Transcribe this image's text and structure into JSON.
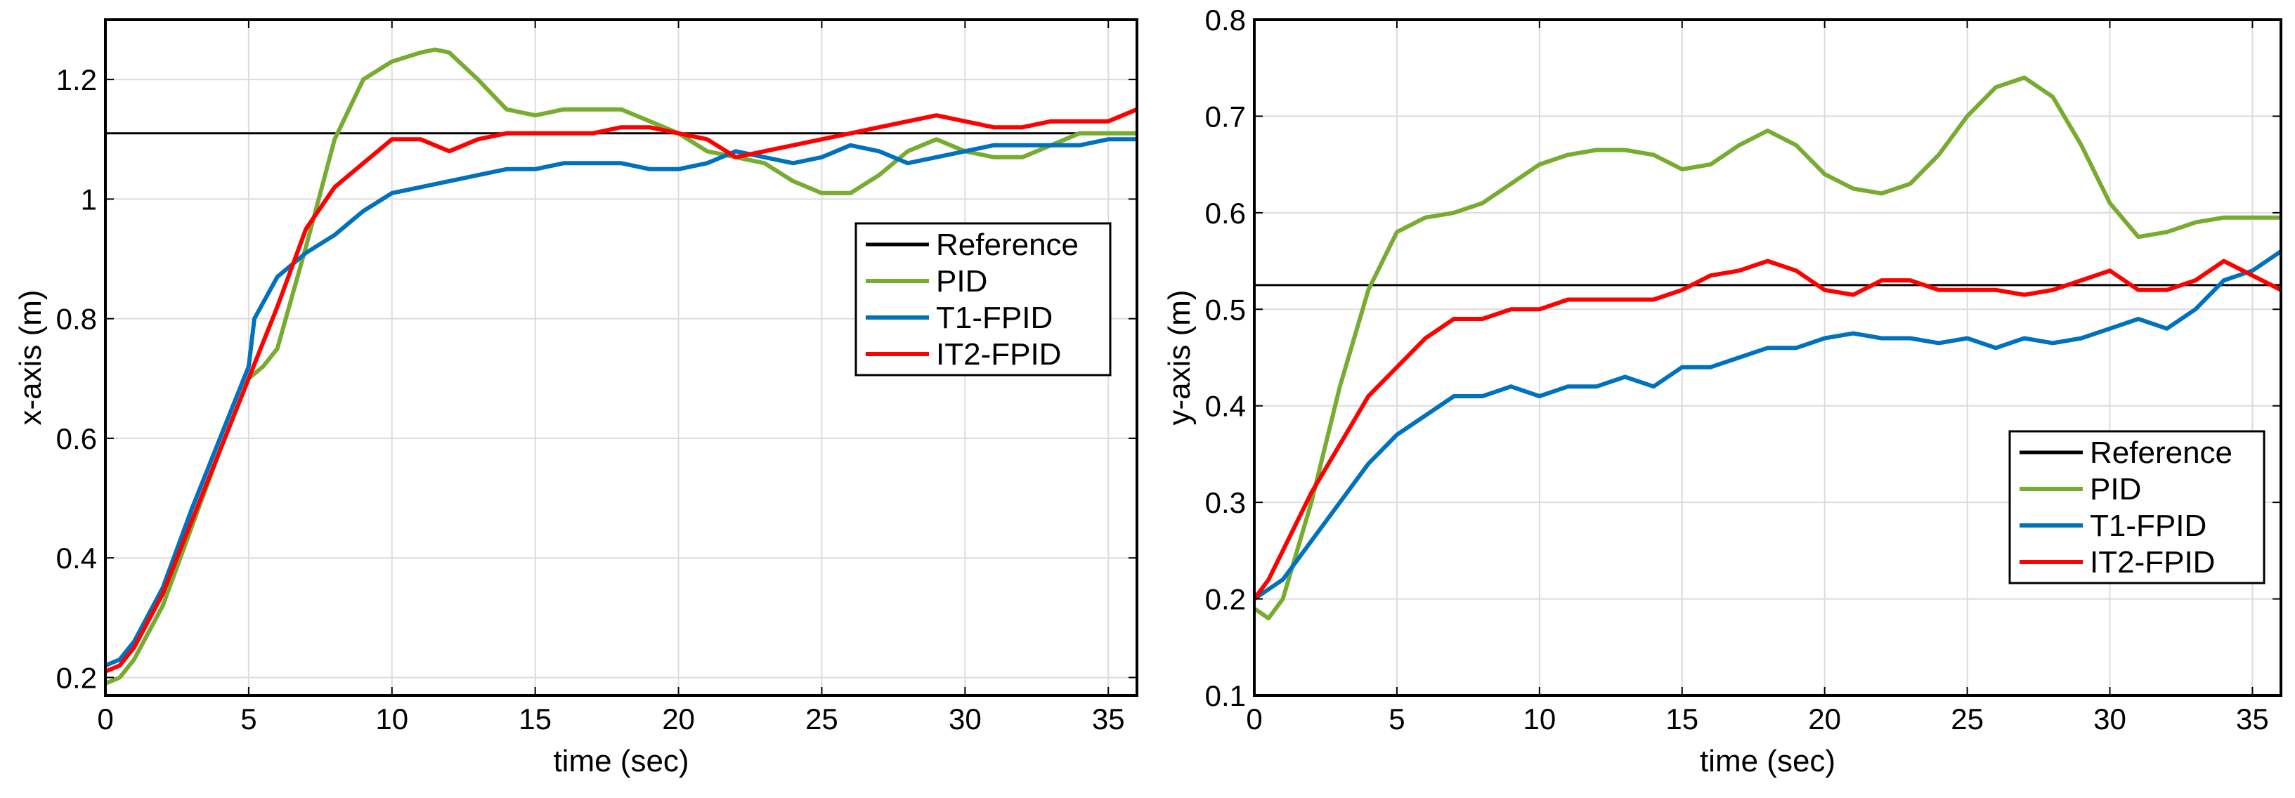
{
  "chart_data": [
    {
      "type": "line",
      "xlabel": "time (sec)",
      "ylabel": "x-axis (m)",
      "xlim": [
        0,
        36
      ],
      "ylim": [
        0.17,
        1.3
      ],
      "xticks": [
        0,
        5,
        10,
        15,
        20,
        25,
        30,
        35
      ],
      "xtick_labels": [
        "0",
        "5",
        "10",
        "15",
        "20",
        "25",
        "30",
        "35"
      ],
      "yticks": [
        0.2,
        0.4,
        0.6,
        0.8,
        1.0,
        1.2
      ],
      "ytick_labels": [
        "0.2",
        "0.4",
        "0.6",
        "0.8",
        "1",
        "1.2"
      ],
      "grid": true,
      "legend_position": "center-right",
      "series": [
        {
          "name": "Reference",
          "color": "#000000",
          "x": [
            0,
            36
          ],
          "y": [
            1.11,
            1.11
          ]
        },
        {
          "name": "PID",
          "color": "#77ac30",
          "x": [
            0,
            0.5,
            1,
            2,
            3,
            4,
            5,
            5.5,
            6,
            7,
            8,
            9,
            10,
            11,
            11.5,
            12,
            13,
            14,
            15,
            16,
            17,
            18,
            19,
            20,
            21,
            22,
            23,
            24,
            25,
            26,
            27,
            28,
            29,
            30,
            31,
            32,
            33,
            34,
            35,
            36
          ],
          "y": [
            0.19,
            0.2,
            0.23,
            0.32,
            0.45,
            0.58,
            0.7,
            0.72,
            0.75,
            0.92,
            1.1,
            1.2,
            1.23,
            1.245,
            1.25,
            1.245,
            1.2,
            1.15,
            1.14,
            1.15,
            1.15,
            1.15,
            1.13,
            1.11,
            1.08,
            1.07,
            1.06,
            1.03,
            1.01,
            1.01,
            1.04,
            1.08,
            1.1,
            1.08,
            1.07,
            1.07,
            1.09,
            1.11,
            1.11,
            1.11
          ]
        },
        {
          "name": "T1-FPID",
          "color": "#0072bd",
          "x": [
            0,
            0.5,
            1,
            2,
            3,
            4,
            5,
            5.2,
            6,
            7,
            8,
            9,
            10,
            11,
            12,
            13,
            14,
            15,
            16,
            17,
            18,
            19,
            20,
            21,
            22,
            23,
            24,
            25,
            26,
            27,
            28,
            29,
            30,
            31,
            32,
            33,
            34,
            35,
            36
          ],
          "y": [
            0.22,
            0.23,
            0.26,
            0.35,
            0.48,
            0.6,
            0.72,
            0.8,
            0.87,
            0.91,
            0.94,
            0.98,
            1.01,
            1.02,
            1.03,
            1.04,
            1.05,
            1.05,
            1.06,
            1.06,
            1.06,
            1.05,
            1.05,
            1.06,
            1.08,
            1.07,
            1.06,
            1.07,
            1.09,
            1.08,
            1.06,
            1.07,
            1.08,
            1.09,
            1.09,
            1.09,
            1.09,
            1.1,
            1.1
          ]
        },
        {
          "name": "IT2-FPID",
          "color": "#ff0000",
          "x": [
            0,
            0.5,
            1,
            2,
            3,
            4,
            5,
            6,
            7,
            8,
            9,
            10,
            11,
            12,
            13,
            14,
            15,
            16,
            17,
            18,
            19,
            20,
            21,
            22,
            23,
            24,
            25,
            26,
            27,
            28,
            29,
            30,
            31,
            32,
            33,
            34,
            35,
            36
          ],
          "y": [
            0.21,
            0.22,
            0.25,
            0.34,
            0.46,
            0.58,
            0.7,
            0.82,
            0.95,
            1.02,
            1.06,
            1.1,
            1.1,
            1.08,
            1.1,
            1.11,
            1.11,
            1.11,
            1.11,
            1.12,
            1.12,
            1.11,
            1.1,
            1.07,
            1.08,
            1.09,
            1.1,
            1.11,
            1.12,
            1.13,
            1.14,
            1.13,
            1.12,
            1.12,
            1.13,
            1.13,
            1.13,
            1.15
          ]
        }
      ],
      "legend": [
        "Reference",
        "PID",
        "T1-FPID",
        "IT2-FPID"
      ]
    },
    {
      "type": "line",
      "xlabel": "time (sec)",
      "ylabel": "y-axis (m)",
      "xlim": [
        0,
        36
      ],
      "ylim": [
        0.1,
        0.8
      ],
      "xticks": [
        0,
        5,
        10,
        15,
        20,
        25,
        30,
        35
      ],
      "xtick_labels": [
        "0",
        "5",
        "10",
        "15",
        "20",
        "25",
        "30",
        "35"
      ],
      "yticks": [
        0.1,
        0.2,
        0.3,
        0.4,
        0.5,
        0.6,
        0.7,
        0.8
      ],
      "ytick_labels": [
        "0.1",
        "0.2",
        "0.3",
        "0.4",
        "0.5",
        "0.6",
        "0.7",
        "0.8"
      ],
      "grid": true,
      "legend_position": "bottom-right",
      "series": [
        {
          "name": "Reference",
          "color": "#000000",
          "x": [
            0,
            36
          ],
          "y": [
            0.525,
            0.525
          ]
        },
        {
          "name": "PID",
          "color": "#77ac30",
          "x": [
            0,
            0.5,
            1,
            2,
            3,
            4,
            5,
            6,
            7,
            8,
            9,
            10,
            11,
            12,
            13,
            14,
            15,
            16,
            17,
            18,
            19,
            20,
            21,
            22,
            23,
            24,
            25,
            26,
            27,
            28,
            29,
            30,
            31,
            32,
            33,
            34,
            35,
            36
          ],
          "y": [
            0.19,
            0.18,
            0.2,
            0.3,
            0.42,
            0.52,
            0.58,
            0.595,
            0.6,
            0.61,
            0.63,
            0.65,
            0.66,
            0.665,
            0.665,
            0.66,
            0.645,
            0.65,
            0.67,
            0.685,
            0.67,
            0.64,
            0.625,
            0.62,
            0.63,
            0.66,
            0.7,
            0.73,
            0.74,
            0.72,
            0.67,
            0.61,
            0.575,
            0.58,
            0.59,
            0.595,
            0.595,
            0.595
          ]
        },
        {
          "name": "T1-FPID",
          "color": "#0072bd",
          "x": [
            0,
            0.5,
            1,
            2,
            3,
            4,
            5,
            6,
            7,
            8,
            9,
            10,
            11,
            12,
            13,
            14,
            15,
            16,
            17,
            18,
            19,
            20,
            21,
            22,
            23,
            24,
            25,
            26,
            27,
            28,
            29,
            30,
            31,
            32,
            33,
            34,
            35,
            36
          ],
          "y": [
            0.2,
            0.21,
            0.22,
            0.26,
            0.3,
            0.34,
            0.37,
            0.39,
            0.41,
            0.41,
            0.42,
            0.41,
            0.42,
            0.42,
            0.43,
            0.42,
            0.44,
            0.44,
            0.45,
            0.46,
            0.46,
            0.47,
            0.475,
            0.47,
            0.47,
            0.465,
            0.47,
            0.46,
            0.47,
            0.465,
            0.47,
            0.48,
            0.49,
            0.48,
            0.5,
            0.53,
            0.54,
            0.56
          ]
        },
        {
          "name": "IT2-FPID",
          "color": "#ff0000",
          "x": [
            0,
            0.5,
            1,
            2,
            3,
            4,
            5,
            6,
            7,
            8,
            9,
            10,
            11,
            12,
            13,
            14,
            15,
            16,
            17,
            18,
            19,
            20,
            21,
            22,
            23,
            24,
            25,
            26,
            27,
            28,
            29,
            30,
            31,
            32,
            33,
            34,
            35,
            36
          ],
          "y": [
            0.2,
            0.22,
            0.25,
            0.31,
            0.36,
            0.41,
            0.44,
            0.47,
            0.49,
            0.49,
            0.5,
            0.5,
            0.51,
            0.51,
            0.51,
            0.51,
            0.52,
            0.535,
            0.54,
            0.55,
            0.54,
            0.52,
            0.515,
            0.53,
            0.53,
            0.52,
            0.52,
            0.52,
            0.515,
            0.52,
            0.53,
            0.54,
            0.52,
            0.52,
            0.53,
            0.55,
            0.535,
            0.52
          ]
        }
      ],
      "legend": [
        "Reference",
        "PID",
        "T1-FPID",
        "IT2-FPID"
      ]
    }
  ]
}
